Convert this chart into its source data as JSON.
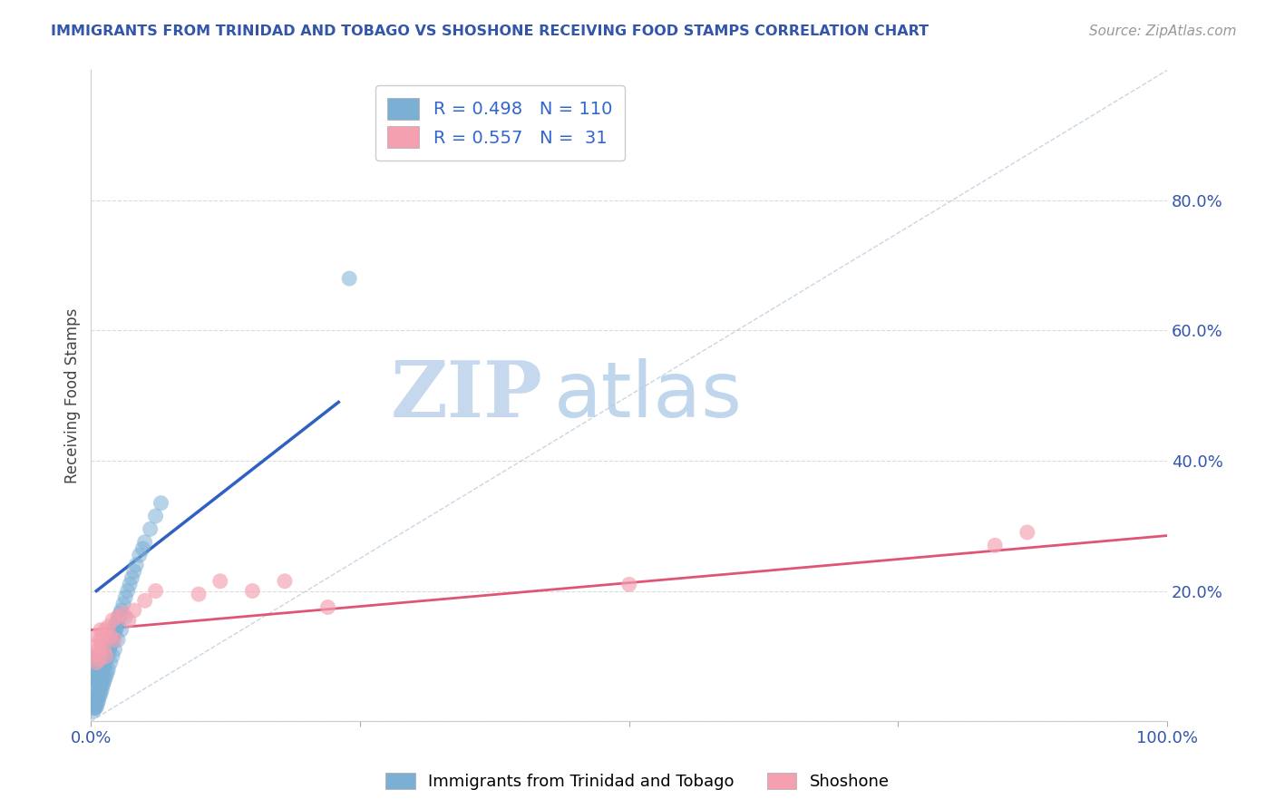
{
  "title": "IMMIGRANTS FROM TRINIDAD AND TOBAGO VS SHOSHONE RECEIVING FOOD STAMPS CORRELATION CHART",
  "source": "Source: ZipAtlas.com",
  "ylabel": "Receiving Food Stamps",
  "xlabel": "",
  "xlim": [
    0,
    1.0
  ],
  "ylim": [
    0,
    1.0
  ],
  "xticks": [
    0.0,
    0.25,
    0.5,
    0.75,
    1.0
  ],
  "xticklabels": [
    "0.0%",
    "",
    "",
    "",
    "100.0%"
  ],
  "yticks": [
    0.0,
    0.2,
    0.4,
    0.6,
    0.8
  ],
  "yticklabels": [
    "",
    "20.0%",
    "40.0%",
    "60.0%",
    "80.0%"
  ],
  "blue_R": 0.498,
  "blue_N": 110,
  "pink_R": 0.557,
  "pink_N": 31,
  "blue_color": "#7BAFD4",
  "pink_color": "#F4A0B0",
  "blue_line_color": "#3060C0",
  "pink_line_color": "#E05575",
  "title_color": "#3355AA",
  "source_color": "#999999",
  "legend_text_color": "#3366CC",
  "watermark_zip": "ZIP",
  "watermark_atlas": "atlas",
  "background_color": "#FFFFFF",
  "grid_color": "#CCCCCC",
  "blue_scatter_x": [
    0.002,
    0.003,
    0.003,
    0.004,
    0.004,
    0.005,
    0.005,
    0.005,
    0.005,
    0.005,
    0.006,
    0.006,
    0.006,
    0.006,
    0.007,
    0.007,
    0.007,
    0.007,
    0.008,
    0.008,
    0.008,
    0.008,
    0.009,
    0.009,
    0.009,
    0.009,
    0.01,
    0.01,
    0.01,
    0.01,
    0.011,
    0.011,
    0.011,
    0.012,
    0.012,
    0.012,
    0.013,
    0.013,
    0.013,
    0.014,
    0.014,
    0.014,
    0.015,
    0.015,
    0.015,
    0.016,
    0.016,
    0.016,
    0.017,
    0.017,
    0.018,
    0.018,
    0.019,
    0.019,
    0.02,
    0.02,
    0.021,
    0.021,
    0.022,
    0.022,
    0.023,
    0.023,
    0.024,
    0.025,
    0.026,
    0.027,
    0.028,
    0.03,
    0.032,
    0.034,
    0.036,
    0.038,
    0.04,
    0.042,
    0.045,
    0.048,
    0.05,
    0.055,
    0.06,
    0.065,
    0.002,
    0.003,
    0.003,
    0.004,
    0.004,
    0.005,
    0.005,
    0.006,
    0.006,
    0.007,
    0.007,
    0.008,
    0.008,
    0.009,
    0.009,
    0.01,
    0.01,
    0.011,
    0.012,
    0.013,
    0.014,
    0.015,
    0.016,
    0.018,
    0.02,
    0.022,
    0.025,
    0.028,
    0.032,
    0.24
  ],
  "blue_scatter_y": [
    0.03,
    0.025,
    0.035,
    0.028,
    0.038,
    0.05,
    0.06,
    0.07,
    0.08,
    0.1,
    0.055,
    0.065,
    0.075,
    0.09,
    0.06,
    0.07,
    0.08,
    0.095,
    0.065,
    0.075,
    0.085,
    0.1,
    0.07,
    0.08,
    0.09,
    0.105,
    0.075,
    0.085,
    0.095,
    0.11,
    0.08,
    0.09,
    0.1,
    0.085,
    0.095,
    0.105,
    0.09,
    0.1,
    0.11,
    0.095,
    0.105,
    0.115,
    0.1,
    0.11,
    0.12,
    0.105,
    0.115,
    0.125,
    0.11,
    0.12,
    0.115,
    0.125,
    0.12,
    0.13,
    0.125,
    0.135,
    0.13,
    0.14,
    0.135,
    0.145,
    0.14,
    0.15,
    0.145,
    0.155,
    0.16,
    0.165,
    0.17,
    0.18,
    0.19,
    0.2,
    0.21,
    0.22,
    0.23,
    0.24,
    0.255,
    0.265,
    0.275,
    0.295,
    0.315,
    0.335,
    0.015,
    0.02,
    0.025,
    0.02,
    0.028,
    0.022,
    0.032,
    0.027,
    0.037,
    0.032,
    0.042,
    0.038,
    0.048,
    0.043,
    0.053,
    0.048,
    0.058,
    0.055,
    0.06,
    0.065,
    0.07,
    0.075,
    0.08,
    0.09,
    0.1,
    0.11,
    0.125,
    0.14,
    0.16,
    0.68
  ],
  "pink_scatter_x": [
    0.003,
    0.004,
    0.005,
    0.006,
    0.007,
    0.008,
    0.008,
    0.009,
    0.01,
    0.011,
    0.012,
    0.013,
    0.014,
    0.016,
    0.018,
    0.02,
    0.022,
    0.025,
    0.03,
    0.035,
    0.04,
    0.05,
    0.06,
    0.1,
    0.12,
    0.15,
    0.18,
    0.22,
    0.5,
    0.84,
    0.87
  ],
  "pink_scatter_y": [
    0.1,
    0.115,
    0.09,
    0.13,
    0.11,
    0.125,
    0.095,
    0.14,
    0.12,
    0.13,
    0.11,
    0.14,
    0.1,
    0.145,
    0.13,
    0.155,
    0.125,
    0.16,
    0.165,
    0.155,
    0.17,
    0.185,
    0.2,
    0.195,
    0.215,
    0.2,
    0.215,
    0.175,
    0.21,
    0.27,
    0.29
  ],
  "blue_line_x": [
    0.005,
    0.23
  ],
  "blue_line_y": [
    0.2,
    0.49
  ],
  "pink_line_x": [
    0.0,
    1.0
  ],
  "pink_line_y": [
    0.14,
    0.285
  ],
  "diag_line_x": [
    0.0,
    1.0
  ],
  "diag_line_y": [
    0.0,
    1.0
  ]
}
